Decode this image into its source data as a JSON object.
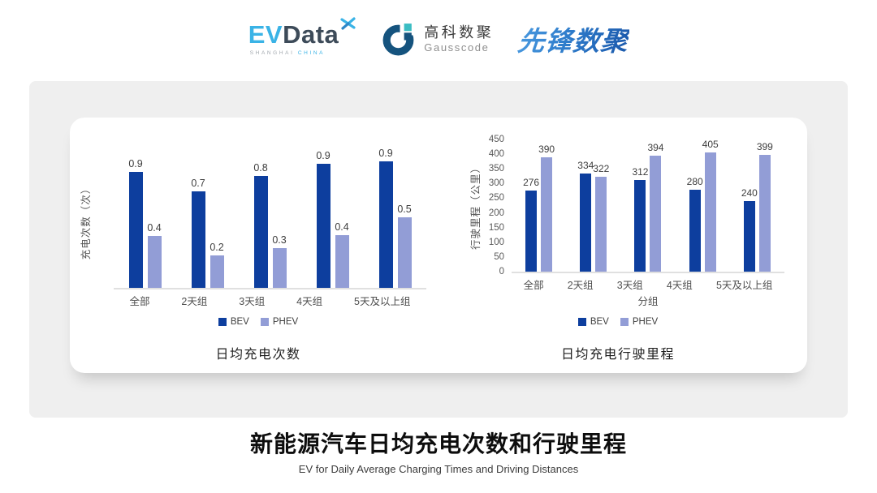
{
  "header": {
    "evdata": {
      "ev": "EV",
      "data": "Data",
      "x_icon": "four-point-spark",
      "sub_left": "SHANGHAI",
      "sub_right": "CHINA"
    },
    "gausscode": {
      "icon": "g-ring-mark",
      "cn": "高科数聚",
      "en": "Gausscode"
    },
    "pioneer": {
      "text": "先锋数聚"
    }
  },
  "colors": {
    "bev": "#0d3e9e",
    "phev": "#929dd6",
    "evdata_light_blue": "#3ab3e6",
    "evdata_dark": "#3d4b59",
    "gausscode_navy": "#15537e",
    "gausscode_teal": "#3bbdc3",
    "pioneer_blue": "#2a74c4",
    "panel_gray": "#efefef"
  },
  "chart_data": [
    {
      "type": "bar",
      "title": "日均充电次数",
      "ylabel": "充电次数（次）",
      "xlabel": "",
      "categories": [
        "全部",
        "2天组",
        "3天组",
        "4天组",
        "5天及以上组"
      ],
      "ylim": [
        0,
        1.0
      ],
      "yticks": [],
      "grid": false,
      "legend_position": "bottom",
      "series": [
        {
          "name": "BEV",
          "color": "#0d3e9e",
          "values": [
            0.9,
            0.7,
            0.8,
            0.9,
            0.9
          ],
          "values_est": [
            0.85,
            0.71,
            0.82,
            0.91,
            0.93
          ]
        },
        {
          "name": "PHEV",
          "color": "#929dd6",
          "values": [
            0.4,
            0.2,
            0.3,
            0.4,
            0.5
          ],
          "values_est": [
            0.38,
            0.24,
            0.29,
            0.39,
            0.52
          ]
        }
      ]
    },
    {
      "type": "bar",
      "title": "日均充电行驶里程",
      "ylabel": "行驶里程（公里）",
      "xlabel": "分组",
      "categories": [
        "全部",
        "2天组",
        "3天组",
        "4天组",
        "5天及以上组"
      ],
      "ylim": [
        0,
        450
      ],
      "yticks": [
        0,
        50,
        100,
        150,
        200,
        250,
        300,
        350,
        400,
        450
      ],
      "grid": false,
      "legend_position": "bottom",
      "series": [
        {
          "name": "BEV",
          "color": "#0d3e9e",
          "values": [
            276,
            334,
            312,
            280,
            240
          ]
        },
        {
          "name": "PHEV",
          "color": "#929dd6",
          "values": [
            390,
            322,
            394,
            405,
            399
          ]
        }
      ]
    }
  ],
  "footer": {
    "title": "新能源汽车日均充电次数和行驶里程",
    "subtitle": "EV for Daily Average Charging Times and Driving Distances"
  }
}
